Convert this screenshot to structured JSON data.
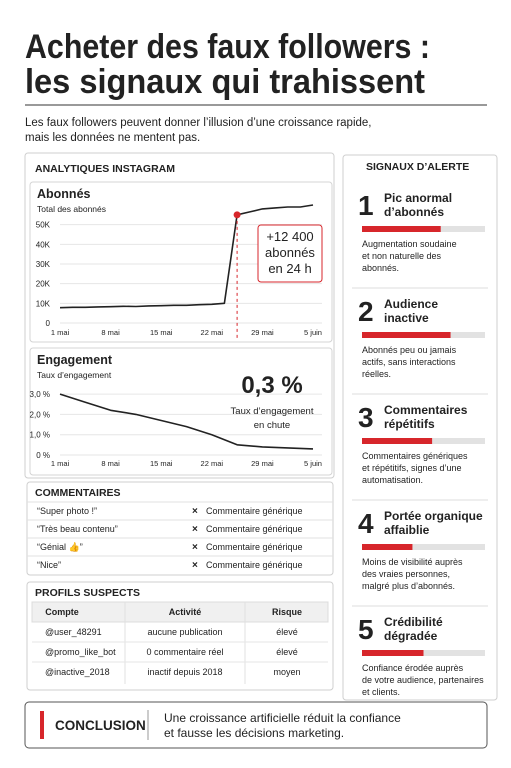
{
  "header": {
    "title": [
      "Acheter des faux followers :",
      "les signaux qui trahissent"
    ],
    "intro": [
      "Les faux followers peuvent donner l’illusion d’une croissance rapide,",
      "mais les données ne mentent pas."
    ]
  },
  "analytics": {
    "heading": "ANALYTIQUES INSTAGRAM"
  },
  "chart_data": [
    {
      "type": "line",
      "title": "Abonnés",
      "subtitle": "Total des abonnés",
      "categories": [
        "1 mai",
        null,
        null,
        null,
        "8 mai",
        null,
        null,
        null,
        "15 mai",
        null,
        null,
        null,
        "22 mai",
        null,
        null,
        null,
        "29 mai",
        null,
        null,
        null,
        "5 juin"
      ],
      "values": [
        7800,
        8000,
        8000,
        8200,
        8300,
        8500,
        8400,
        8700,
        8800,
        9000,
        9000,
        9300,
        9500,
        10000,
        55000,
        56500,
        58000,
        58500,
        59000,
        59000,
        60000
      ],
      "color": "#222222",
      "highlight_color": "#d7262b",
      "ylim": [
        0,
        60000
      ],
      "yticks": [
        0,
        {
          "value": 10000,
          "label": "10K"
        },
        {
          "value": 20000,
          "label": "20K"
        },
        {
          "value": 30000,
          "label": "30K"
        },
        {
          "value": 40000,
          "label": "40K"
        },
        {
          "value": 50000,
          "label": "50K"
        }
      ],
      "grid": true,
      "annotation": [
        "+12 400",
        "abonnés",
        "en 24 h"
      ]
    },
    {
      "type": "line",
      "title": "Engagement",
      "subtitle": "Taux d’engagement",
      "categories": [
        "1 mai",
        null,
        "8 mai",
        null,
        "15 mai",
        null,
        "22 mai",
        null,
        "29 mai",
        null,
        "5 juin"
      ],
      "values": [
        3.0,
        2.6,
        2.2,
        2.0,
        1.7,
        1.4,
        1.0,
        0.5,
        0.4,
        0.35,
        0.3
      ],
      "color": "#222222",
      "highlight_color": "#d7262b",
      "ylim": [
        0,
        3.3
      ],
      "yticks": [
        {
          "value": 0,
          "label": "0 %"
        },
        {
          "value": 1,
          "label": "1,0 %"
        },
        {
          "value": 2,
          "label": "2,0 %"
        },
        {
          "value": 3,
          "label": "3,0 %"
        }
      ],
      "grid": true,
      "annotation": [
        "0,3 %",
        "Taux d’engagement",
        "en chute"
      ]
    }
  ],
  "comments": {
    "heading": "COMMENTAIRES",
    "rows": [
      {
        "text": "“Super photo !”",
        "flag": "Commentaire générique"
      },
      {
        "text": "“Très beau contenu”",
        "flag": "Commentaire générique"
      },
      {
        "text": "“Génial 👍”",
        "flag": "Commentaire générique"
      },
      {
        "text": "“Nice”",
        "flag": "Commentaire générique"
      }
    ]
  },
  "profiles": {
    "heading": "PROFILS SUSPECTS",
    "columns": [
      "Compte",
      "Activité",
      "Risque"
    ],
    "rows": [
      [
        "@user_48291",
        "aucune publication",
        "élevé"
      ],
      [
        "@promo_like_bot",
        "0 commentaire réel",
        "élevé"
      ],
      [
        "@inactive_2018",
        "inactif depuis 2018",
        "moyen"
      ]
    ],
    "risk_colors": [
      "#d7262b",
      "#d7262b",
      "#e08a00"
    ]
  },
  "signals": {
    "heading": "SIGNAUX D’ALERTE",
    "level_lim": [
      0,
      100
    ],
    "items": [
      {
        "number": "1",
        "title": [
          "Pic anormal",
          "d’abonnés"
        ],
        "level": 64,
        "text": [
          "Augmentation soudaine",
          "et non naturelle des",
          "abonnés."
        ]
      },
      {
        "number": "2",
        "title": [
          "Audience",
          "inactive"
        ],
        "level": 72,
        "text": [
          "Abonnés peu ou jamais",
          "actifs, sans interactions",
          "réelles."
        ]
      },
      {
        "number": "3",
        "title": [
          "Commentaires",
          "répétitifs"
        ],
        "level": 57,
        "text": [
          "Commentaires génériques",
          "et répétitifs, signes d’une",
          "automatisation."
        ]
      },
      {
        "number": "4",
        "title": [
          "Portée organique",
          "affaiblie"
        ],
        "level": 41,
        "text": [
          "Moins de visibilité auprès",
          "des vraies personnes,",
          "malgré plus d’abonnés."
        ]
      },
      {
        "number": "5",
        "title": [
          "Crédibilité",
          "dégradée"
        ],
        "level": 50,
        "text": [
          "Confiance érodée auprès",
          "de votre audience, partenaires",
          "et clients."
        ]
      }
    ]
  },
  "conclusion": {
    "label": "CONCLUSION",
    "text": [
      "Une croissance artificielle réduit la confiance",
      "et fausse les décisions marketing."
    ]
  }
}
